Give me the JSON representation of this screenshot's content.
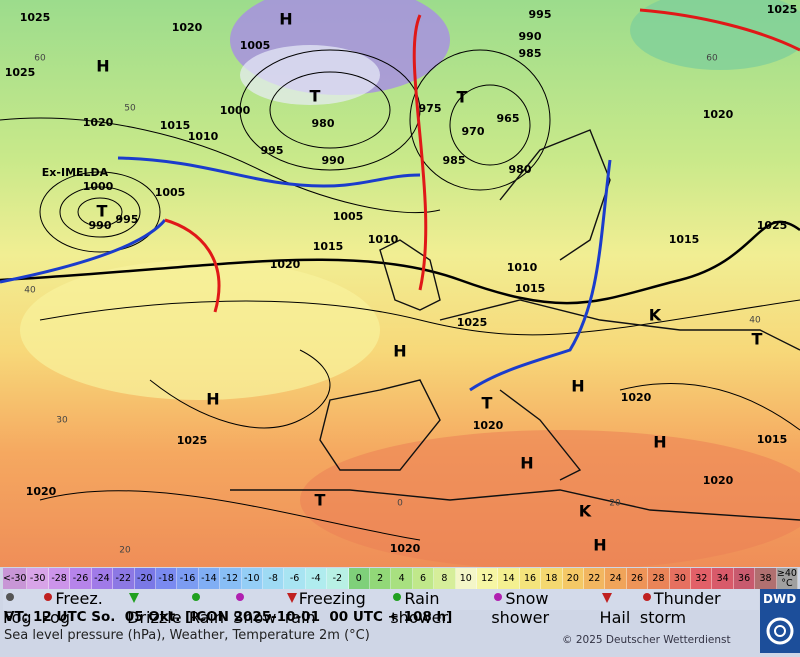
{
  "map": {
    "labels": [
      "1025",
      "1020",
      "1025",
      "H",
      "1005",
      "H",
      "1020",
      "1015",
      "1010",
      "1000",
      "T",
      "980",
      "995",
      "990",
      "T",
      "975",
      "965",
      "970",
      "985",
      "980",
      "990",
      "985",
      "995",
      "1025",
      "1020",
      "1025",
      "1015",
      "Ex-IMELDA",
      "1000",
      "1005",
      "T",
      "995",
      "990",
      "1005",
      "1010",
      "1015",
      "1020",
      "1010",
      "1015",
      "1025",
      "H",
      "K",
      "T",
      "H",
      "1025",
      "H",
      "T",
      "1020",
      "1020",
      "H",
      "1015",
      "H",
      "1020",
      "1020",
      "T",
      "1020",
      "H",
      "K"
    ],
    "latitudes": [
      "60",
      "50",
      "40",
      "30",
      "20",
      "40",
      "60",
      "20",
      "0"
    ]
  },
  "scale": [
    {
      "label": "<-30",
      "color": "#c896d6"
    },
    {
      "label": "-30",
      "color": "#d8a4e8"
    },
    {
      "label": "-28",
      "color": "#cc94ea"
    },
    {
      "label": "-26",
      "color": "#b684ea"
    },
    {
      "label": "-24",
      "color": "#a07ae8"
    },
    {
      "label": "-22",
      "color": "#8c78e4"
    },
    {
      "label": "-20",
      "color": "#7a78e6"
    },
    {
      "label": "-18",
      "color": "#7a8af0"
    },
    {
      "label": "-16",
      "color": "#7c9cf2"
    },
    {
      "label": "-14",
      "color": "#80aef4"
    },
    {
      "label": "-12",
      "color": "#88bef6"
    },
    {
      "label": "-10",
      "color": "#94cef6"
    },
    {
      "label": "-8",
      "color": "#9edaf4"
    },
    {
      "label": "-6",
      "color": "#a8e4f2"
    },
    {
      "label": "-4",
      "color": "#b0ecee"
    },
    {
      "label": "-2",
      "color": "#b8f0e4"
    },
    {
      "label": "0",
      "color": "#7fd07a"
    },
    {
      "label": "2",
      "color": "#92d878"
    },
    {
      "label": "4",
      "color": "#a8e080"
    },
    {
      "label": "6",
      "color": "#c0e88a"
    },
    {
      "label": "8",
      "color": "#d6ee9a"
    },
    {
      "label": "10",
      "color": "#f4f6c8"
    },
    {
      "label": "12",
      "color": "#f6f6a4"
    },
    {
      "label": "14",
      "color": "#f4f090"
    },
    {
      "label": "16",
      "color": "#f4e47c"
    },
    {
      "label": "18",
      "color": "#f4d870"
    },
    {
      "label": "20",
      "color": "#f4c866"
    },
    {
      "label": "22",
      "color": "#f2b660"
    },
    {
      "label": "24",
      "color": "#f0a45a"
    },
    {
      "label": "26",
      "color": "#ee9458"
    },
    {
      "label": "28",
      "color": "#ea8458"
    },
    {
      "label": "30",
      "color": "#e67060"
    },
    {
      "label": "32",
      "color": "#e26068"
    },
    {
      "label": "34",
      "color": "#d85a6a"
    },
    {
      "label": "36",
      "color": "#c85a6e"
    },
    {
      "label": "38",
      "color": "#b07070"
    },
    {
      "label": "≥40 °C",
      "color": "#a0a0a0"
    }
  ],
  "legend": [
    {
      "label": "Fog",
      "color": "#555555"
    },
    {
      "label": "Freez. Fog",
      "color": "#c02020"
    },
    {
      "label": "Drizzle",
      "color": "#20a020"
    },
    {
      "label": "Rain",
      "color": "#20a020"
    },
    {
      "label": "Snow",
      "color": "#b020b0"
    },
    {
      "label": "Freezing rain",
      "color": "#c02020"
    },
    {
      "label": "Rain shower",
      "color": "#20a020"
    },
    {
      "label": "Snow shower",
      "color": "#b020b0"
    },
    {
      "label": "Hail",
      "color": "#c02020"
    },
    {
      "label": "Thunder storm",
      "color": "#c02020"
    }
  ],
  "footer": {
    "valid_time": "VT: 12 UTC So.  05 Okt. [ICON 2025-10-01  00 UTC + 108 h]",
    "description": "Sea level pressure (hPa), Weather, Temperature 2m (°C)",
    "copyright": "© 2025 Deutscher Wetterdienst",
    "logo": "DWD"
  }
}
